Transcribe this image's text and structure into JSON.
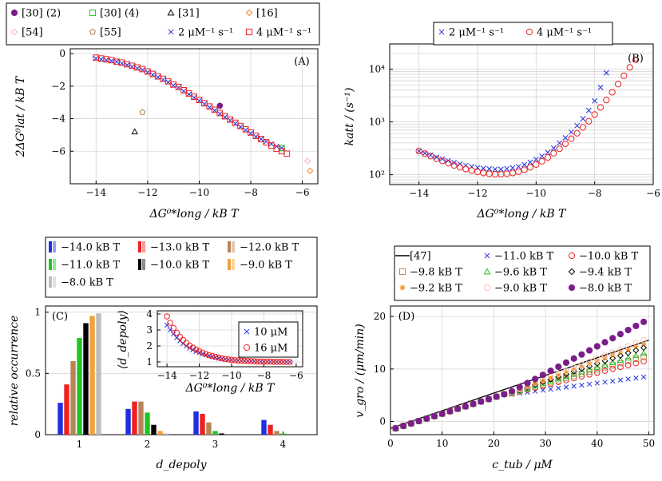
{
  "colors": {
    "purple": "#7b1d8a",
    "green": "#22c422",
    "black": "#000000",
    "orange": "#f08a1d",
    "pink": "#f5b4b4",
    "brown": "#b07d4a",
    "blue": "#1f2fe0",
    "red": "#ee2020",
    "gray": "#bdbdbd",
    "tan": "#b88457",
    "peach": "#f8c2b0",
    "lightorange": "#f2a23a"
  },
  "chart_data": [
    {
      "id": "A",
      "type": "scatter",
      "panel_label": "(A)",
      "xlabel": "ΔG⁰*long / kB T",
      "ylabel": "2ΔG⁰lat / kB T",
      "xlim": [
        -15,
        -5.4
      ],
      "ylim": [
        -8,
        0.3
      ],
      "xticks": [
        -14,
        -12,
        -10,
        -8,
        -6
      ],
      "yticks": [
        0,
        -2,
        -4,
        -6
      ],
      "legend": [
        {
          "label": "[30] (2)",
          "marker": "dot",
          "color": "purple"
        },
        {
          "label": "[30] (4)",
          "marker": "square",
          "color": "green"
        },
        {
          "label": "[31]",
          "marker": "triangle",
          "color": "black"
        },
        {
          "label": "[16]",
          "marker": "diamond",
          "color": "orange"
        },
        {
          "label": "[54]",
          "marker": "diamond",
          "color": "pink"
        },
        {
          "label": "[55]",
          "marker": "pentagon",
          "color": "brown"
        },
        {
          "label": "2 μM⁻¹ s⁻¹",
          "marker": "cross",
          "color": "blue"
        },
        {
          "label": "4 μM⁻¹ s⁻¹",
          "marker": "square",
          "color": "red"
        }
      ],
      "series": [
        {
          "name": "[30] (2)",
          "marker": "dot",
          "color": "purple",
          "x": [
            -9.2
          ],
          "y": [
            -3.2
          ]
        },
        {
          "name": "[30] (4)",
          "marker": "square",
          "color": "green",
          "x": [
            -6.8
          ],
          "y": [
            -5.8
          ]
        },
        {
          "name": "[31]",
          "marker": "triangle",
          "color": "black",
          "x": [
            -12.5
          ],
          "y": [
            -4.8
          ]
        },
        {
          "name": "[16]",
          "marker": "diamond",
          "color": "orange",
          "x": [
            -5.7
          ],
          "y": [
            -7.2
          ]
        },
        {
          "name": "[54]",
          "marker": "diamond",
          "color": "pink",
          "x": [
            -5.8
          ],
          "y": [
            -6.6
          ]
        },
        {
          "name": "[55]",
          "marker": "pentagon",
          "color": "brown",
          "x": [
            -12.2
          ],
          "y": [
            -3.6
          ]
        },
        {
          "name": "2 μM⁻¹ s⁻¹",
          "marker": "cross",
          "color": "blue",
          "x": [
            -14.0,
            -13.8,
            -13.6,
            -13.4,
            -13.2,
            -13.0,
            -12.8,
            -12.6,
            -12.4,
            -12.2,
            -12.0,
            -11.8,
            -11.6,
            -11.4,
            -11.2,
            -11.0,
            -10.8,
            -10.6,
            -10.4,
            -10.2,
            -10.0,
            -9.8,
            -9.6,
            -9.4,
            -9.2,
            -9.0,
            -8.8,
            -8.6,
            -8.4,
            -8.2,
            -8.0,
            -7.8,
            -7.6,
            -7.4,
            -7.2,
            -7.0,
            -6.8
          ],
          "y": [
            -0.3,
            -0.35,
            -0.4,
            -0.45,
            -0.5,
            -0.6,
            -0.7,
            -0.8,
            -0.9,
            -1.0,
            -1.15,
            -1.3,
            -1.45,
            -1.6,
            -1.75,
            -1.95,
            -2.1,
            -2.3,
            -2.5,
            -2.7,
            -2.9,
            -3.1,
            -3.3,
            -3.5,
            -3.7,
            -3.9,
            -4.1,
            -4.3,
            -4.5,
            -4.7,
            -4.9,
            -5.1,
            -5.25,
            -5.4,
            -5.55,
            -5.7,
            -5.8
          ]
        },
        {
          "name": "4 μM⁻¹ s⁻¹",
          "marker": "square",
          "color": "red",
          "x": [
            -14.0,
            -13.8,
            -13.6,
            -13.4,
            -13.2,
            -13.0,
            -12.8,
            -12.6,
            -12.4,
            -12.2,
            -12.0,
            -11.8,
            -11.6,
            -11.4,
            -11.2,
            -11.0,
            -10.8,
            -10.6,
            -10.4,
            -10.2,
            -10.0,
            -9.8,
            -9.6,
            -9.4,
            -9.2,
            -9.0,
            -8.8,
            -8.6,
            -8.4,
            -8.2,
            -8.0,
            -7.8,
            -7.6,
            -7.4,
            -7.2,
            -7.0,
            -6.8,
            -6.6
          ],
          "y": [
            -0.25,
            -0.3,
            -0.35,
            -0.4,
            -0.5,
            -0.55,
            -0.65,
            -0.75,
            -0.85,
            -0.95,
            -1.1,
            -1.25,
            -1.4,
            -1.55,
            -1.7,
            -1.9,
            -2.05,
            -2.25,
            -2.45,
            -2.65,
            -2.85,
            -3.05,
            -3.25,
            -3.45,
            -3.65,
            -3.85,
            -4.05,
            -4.25,
            -4.45,
            -4.65,
            -4.85,
            -5.05,
            -5.25,
            -5.45,
            -5.65,
            -5.85,
            -6.0,
            -6.15
          ]
        }
      ]
    },
    {
      "id": "B",
      "type": "scatter",
      "panel_label": "(B)",
      "xlabel": "ΔG⁰*long / kB T",
      "ylabel": "katt / (s⁻¹)",
      "yscale": "log",
      "xlim": [
        -15,
        -6
      ],
      "ylim": [
        65,
        30000
      ],
      "xticks": [
        -14,
        -12,
        -10,
        -8,
        -6
      ],
      "yticks": [
        100,
        1000,
        10000
      ],
      "ytick_labels": [
        "10²",
        "10³",
        "10⁴"
      ],
      "legend": [
        {
          "label": "2 μM⁻¹ s⁻¹",
          "marker": "cross",
          "color": "blue"
        },
        {
          "label": "4 μM⁻¹ s⁻¹",
          "marker": "circle",
          "color": "red"
        }
      ],
      "series": [
        {
          "name": "2 μM⁻¹ s⁻¹",
          "marker": "cross",
          "color": "blue",
          "x": [
            -14.0,
            -13.8,
            -13.6,
            -13.4,
            -13.2,
            -13.0,
            -12.8,
            -12.6,
            -12.4,
            -12.2,
            -12.0,
            -11.8,
            -11.6,
            -11.4,
            -11.2,
            -11.0,
            -10.8,
            -10.6,
            -10.4,
            -10.2,
            -10.0,
            -9.8,
            -9.6,
            -9.4,
            -9.2,
            -9.0,
            -8.8,
            -8.6,
            -8.4,
            -8.2,
            -8.0,
            -7.8,
            -7.6
          ],
          "y": [
            280,
            255,
            235,
            215,
            200,
            185,
            170,
            160,
            150,
            142,
            136,
            132,
            129,
            127,
            127,
            130,
            135,
            143,
            155,
            172,
            195,
            225,
            265,
            320,
            400,
            500,
            640,
            850,
            1150,
            1650,
            2500,
            4500,
            8500
          ]
        },
        {
          "name": "4 μM⁻¹ s⁻¹",
          "marker": "circle",
          "color": "red",
          "x": [
            -14.0,
            -13.8,
            -13.6,
            -13.4,
            -13.2,
            -13.0,
            -12.8,
            -12.6,
            -12.4,
            -12.2,
            -12.0,
            -11.8,
            -11.6,
            -11.4,
            -11.2,
            -11.0,
            -10.8,
            -10.6,
            -10.4,
            -10.2,
            -10.0,
            -9.8,
            -9.6,
            -9.4,
            -9.2,
            -9.0,
            -8.8,
            -8.6,
            -8.4,
            -8.2,
            -8.0,
            -7.8,
            -7.6,
            -7.4,
            -7.2,
            -7.0,
            -6.8,
            -6.6
          ],
          "y": [
            280,
            250,
            225,
            200,
            182,
            165,
            150,
            138,
            128,
            120,
            113,
            108,
            104,
            102,
            102,
            104,
            108,
            114,
            124,
            138,
            156,
            180,
            212,
            255,
            310,
            385,
            480,
            610,
            790,
            1030,
            1380,
            1880,
            2600,
            3650,
            5200,
            7500,
            10800,
            15000
          ]
        }
      ]
    },
    {
      "id": "C",
      "type": "bar",
      "panel_label": "(C)",
      "xlabel": "d_depoly",
      "ylabel": "relative occurrence",
      "categories": [
        "1",
        "2",
        "3",
        "4"
      ],
      "ylim": [
        0,
        1.05
      ],
      "yticks": [
        0,
        0.5,
        1
      ],
      "ytick_labels": [
        "0",
        "0.5",
        "1"
      ],
      "series": [
        {
          "name": "−14.0 kB T",
          "color": "blue",
          "values": [
            0.26,
            0.21,
            0.19,
            0.12
          ]
        },
        {
          "name": "−13.0 kB T",
          "color": "red",
          "values": [
            0.41,
            0.27,
            0.17,
            0.08
          ]
        },
        {
          "name": "−12.0 kB T",
          "color": "tan",
          "values": [
            0.6,
            0.27,
            0.1,
            0.03
          ]
        },
        {
          "name": "−11.0 kB T",
          "color": "green",
          "values": [
            0.79,
            0.18,
            0.03,
            0.01
          ]
        },
        {
          "name": "−10.0 kB T",
          "color": "black",
          "values": [
            0.91,
            0.08,
            0.01,
            0.0
          ]
        },
        {
          "name": "−9.0 kB T",
          "color": "lightorange",
          "values": [
            0.97,
            0.03,
            0.0,
            0.0
          ]
        },
        {
          "name": "−8.0 kB T",
          "color": "gray",
          "values": [
            0.99,
            0.01,
            0.0,
            0.0
          ]
        }
      ],
      "inset": {
        "xlabel": "ΔG⁰*long / kB T",
        "ylabel": "⟨d_depoly⟩",
        "xlim": [
          -14.6,
          -5.6
        ],
        "ylim": [
          0.7,
          4.2
        ],
        "xticks": [
          -14,
          -12,
          -10,
          -8,
          -6
        ],
        "yticks": [
          1,
          2,
          3,
          4
        ],
        "legend": [
          {
            "label": "10 μM",
            "marker": "cross",
            "color": "blue"
          },
          {
            "label": "16 μM",
            "marker": "circle",
            "color": "red"
          }
        ],
        "series": [
          {
            "name": "10 μM",
            "marker": "cross",
            "color": "blue",
            "x": [
              -14.0,
              -13.8,
              -13.6,
              -13.4,
              -13.2,
              -13.0,
              -12.8,
              -12.6,
              -12.4,
              -12.2,
              -12.0,
              -11.8,
              -11.6,
              -11.4,
              -11.2,
              -11.0,
              -10.8,
              -10.6,
              -10.4,
              -10.2,
              -10.0,
              -9.8,
              -9.6,
              -9.4,
              -9.2,
              -9.0,
              -8.8,
              -8.6,
              -8.4,
              -8.2,
              -8.0,
              -7.8,
              -7.6,
              -7.4,
              -7.2,
              -7.0,
              -6.8,
              -6.6,
              -6.4
            ],
            "y": [
              3.3,
              3.0,
              2.75,
              2.52,
              2.32,
              2.15,
              2.0,
              1.87,
              1.76,
              1.66,
              1.58,
              1.5,
              1.44,
              1.38,
              1.33,
              1.28,
              1.24,
              1.2,
              1.17,
              1.14,
              1.12,
              1.1,
              1.08,
              1.07,
              1.06,
              1.05,
              1.04,
              1.03,
              1.03,
              1.02,
              1.02,
              1.02,
              1.01,
              1.01,
              1.01,
              1.01,
              1.0,
              1.0,
              1.0
            ]
          },
          {
            "name": "16 μM",
            "marker": "circle",
            "color": "red",
            "x": [
              -14.0,
              -13.8,
              -13.6,
              -13.4,
              -13.2,
              -13.0,
              -12.8,
              -12.6,
              -12.4,
              -12.2,
              -12.0,
              -11.8,
              -11.6,
              -11.4,
              -11.2,
              -11.0,
              -10.8,
              -10.6,
              -10.4,
              -10.2,
              -10.0,
              -9.8,
              -9.6,
              -9.4,
              -9.2,
              -9.0,
              -8.8,
              -8.6,
              -8.4,
              -8.2,
              -8.0,
              -7.8,
              -7.6,
              -7.4,
              -7.2,
              -7.0,
              -6.8,
              -6.6,
              -6.4
            ],
            "y": [
              3.85,
              3.45,
              3.12,
              2.83,
              2.58,
              2.37,
              2.19,
              2.03,
              1.89,
              1.77,
              1.67,
              1.58,
              1.5,
              1.43,
              1.37,
              1.32,
              1.27,
              1.23,
              1.19,
              1.16,
              1.13,
              1.11,
              1.09,
              1.08,
              1.07,
              1.06,
              1.05,
              1.04,
              1.03,
              1.03,
              1.02,
              1.02,
              1.02,
              1.01,
              1.01,
              1.01,
              1.01,
              1.0,
              1.0
            ]
          }
        ]
      }
    },
    {
      "id": "D",
      "type": "line",
      "panel_label": "(D)",
      "xlabel": "c_tub / μM",
      "ylabel": "v_gro / (μm/min)",
      "xlim": [
        0,
        51
      ],
      "ylim": [
        -2.5,
        22
      ],
      "xticks": [
        0,
        10,
        20,
        30,
        40,
        50
      ],
      "yticks": [
        0,
        10,
        20
      ],
      "legend": [
        {
          "label": "[47]",
          "marker": "line",
          "color": "black"
        },
        {
          "label": "−11.0 kB T",
          "marker": "cross",
          "color": "blue"
        },
        {
          "label": "−10.0 kB T",
          "marker": "circle",
          "color": "red"
        },
        {
          "label": "−9.8 kB T",
          "marker": "square",
          "color": "tan"
        },
        {
          "label": "−9.6 kB T",
          "marker": "triangle",
          "color": "green"
        },
        {
          "label": "−9.4 kB T",
          "marker": "diamond",
          "color": "black"
        },
        {
          "label": "−9.2 kB T",
          "marker": "star",
          "color": "orange"
        },
        {
          "label": "−9.0 kB T",
          "marker": "circle",
          "color": "peach"
        },
        {
          "label": "−8.0 kB T",
          "marker": "dot",
          "color": "purple"
        }
      ],
      "line_47": {
        "x": [
          0,
          50
        ],
        "y": [
          -1.3,
          15.5
        ]
      },
      "series": [
        {
          "name": "−11.0 kB T",
          "marker": "cross",
          "color": "blue",
          "v50": 8.6
        },
        {
          "name": "−10.0 kB T",
          "marker": "circle",
          "color": "red",
          "v50": 11.7
        },
        {
          "name": "−9.8 kB T",
          "marker": "square",
          "color": "tan",
          "v50": 12.6
        },
        {
          "name": "−9.6 kB T",
          "marker": "triangle",
          "color": "green",
          "v50": 13.3
        },
        {
          "name": "−9.4 kB T",
          "marker": "diamond",
          "color": "black",
          "v50": 14.4
        },
        {
          "name": "−9.2 kB T",
          "marker": "star",
          "color": "orange",
          "v50": 15.2
        },
        {
          "name": "−9.0 kB T",
          "marker": "circle",
          "color": "peach",
          "v50": 15.9
        },
        {
          "name": "−8.0 kB T",
          "marker": "dot",
          "color": "purple",
          "v50": 19.5
        }
      ]
    }
  ]
}
